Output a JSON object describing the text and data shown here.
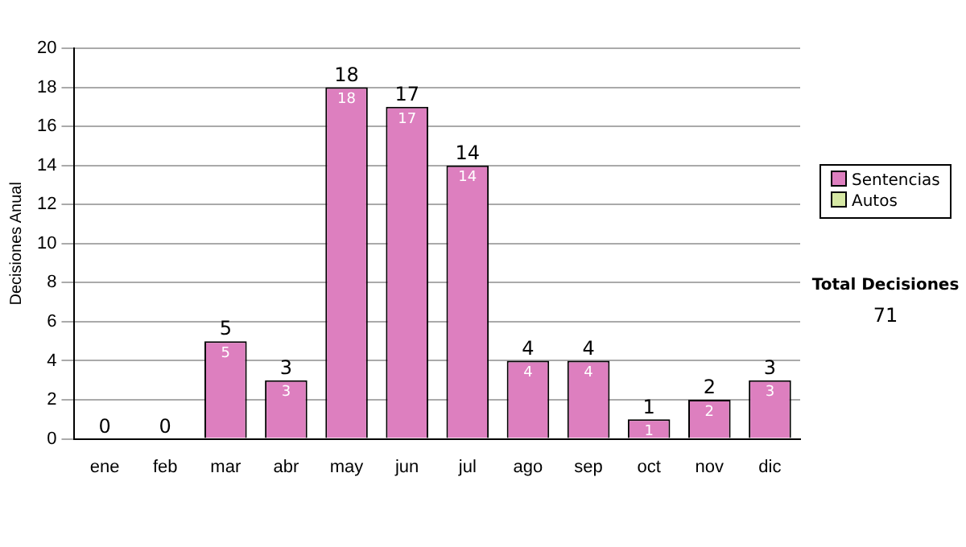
{
  "chart_data": {
    "type": "bar",
    "ylabel": "Decisiones Anual",
    "categories": [
      "ene",
      "feb",
      "mar",
      "abr",
      "may",
      "jun",
      "jul",
      "ago",
      "sep",
      "oct",
      "nov",
      "dic"
    ],
    "series": [
      {
        "name": "Sentencias",
        "color": "#dd7fbf",
        "values": [
          0,
          0,
          5,
          3,
          18,
          17,
          14,
          4,
          4,
          1,
          2,
          3
        ],
        "value_labels": [
          null,
          null,
          "5",
          "3",
          "18",
          "17",
          "14",
          "4",
          "4",
          "1",
          "2",
          "3"
        ]
      },
      {
        "name": "Autos",
        "color": "#d6e8a4",
        "values": [
          0,
          0,
          0,
          0,
          0,
          0,
          0,
          0,
          0,
          0,
          0,
          0
        ]
      }
    ],
    "stacked": true,
    "totals": [
      "0",
      "0",
      "5",
      "3",
      "18",
      "17",
      "14",
      "4",
      "4",
      "1",
      "2",
      "3"
    ],
    "ylim": [
      0,
      20
    ],
    "yticks": [
      0,
      2,
      4,
      6,
      8,
      10,
      12,
      14,
      16,
      18,
      20
    ],
    "grid": "y",
    "legend": "right",
    "annotations": [
      "Total Decisiones",
      "71"
    ]
  }
}
